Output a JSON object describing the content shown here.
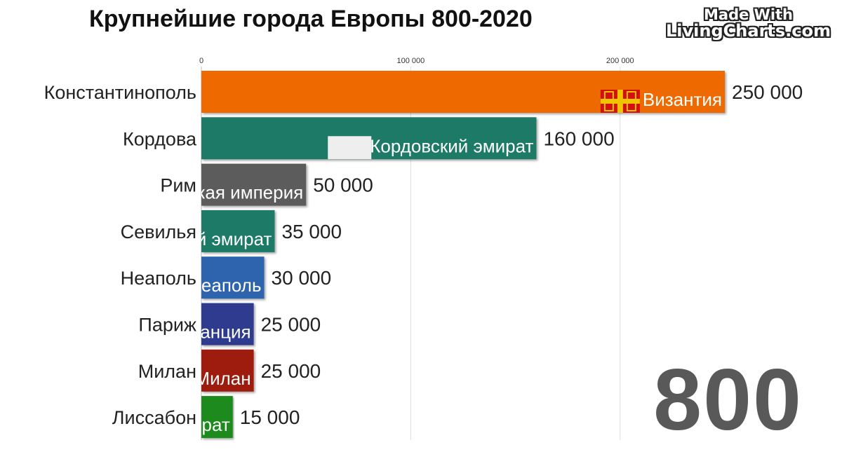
{
  "title": "Крупнейшие города Европы 800-2020",
  "watermark": {
    "line1": "Made With",
    "line2": "LivingCharts.com"
  },
  "year": "800",
  "chart_data": {
    "type": "bar",
    "orientation": "horizontal",
    "title": "Крупнейшие города Европы 800-2020",
    "xlim": [
      0,
      250000
    ],
    "ticks": [
      {
        "value": 0,
        "label": "0"
      },
      {
        "value": 100000,
        "label": "100 000"
      },
      {
        "value": 200000,
        "label": "200 000"
      }
    ],
    "grid": true,
    "bars": [
      {
        "city": "Константинополь",
        "value": 250000,
        "value_label": "250 000",
        "entity": "Византия",
        "color": "#ee6a00",
        "flag": "byzantine-flag"
      },
      {
        "city": "Кордова",
        "value": 160000,
        "value_label": "160 000",
        "entity": "Кордовский эмират",
        "color": "#1f7a66",
        "flag": "white-flag"
      },
      {
        "city": "Рим",
        "value": 50000,
        "value_label": "50 000",
        "entity": "кая империя",
        "color": "#5c5c5c"
      },
      {
        "city": "Севилья",
        "value": 35000,
        "value_label": "35 000",
        "entity": "й эмират",
        "color": "#1f7a66"
      },
      {
        "city": "Неаполь",
        "value": 30000,
        "value_label": "30 000",
        "entity": "еаполь",
        "color": "#2e63ad"
      },
      {
        "city": "Париж",
        "value": 25000,
        "value_label": "25 000",
        "entity": "анция",
        "color": "#2e3a8f"
      },
      {
        "city": "Милан",
        "value": 25000,
        "value_label": "25 000",
        "entity": "Милан",
        "color": "#9e1b10"
      },
      {
        "city": "Лиссабон",
        "value": 15000,
        "value_label": "15 000",
        "entity": "рат",
        "color": "#1d8a1d"
      }
    ]
  }
}
